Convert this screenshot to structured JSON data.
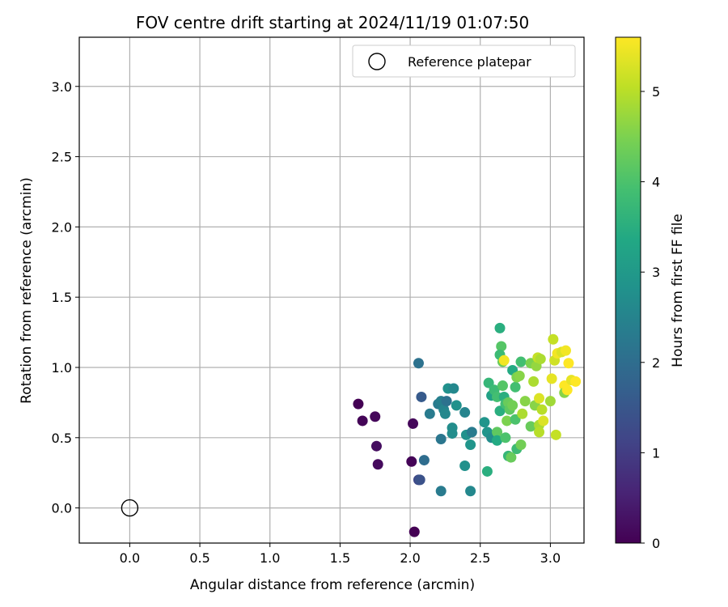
{
  "chart_data": {
    "type": "scatter",
    "title": "FOV centre drift starting at 2024/11/19 01:07:50",
    "xlabel": "Angular distance from reference (arcmin)",
    "ylabel": "Rotation from reference (arcmin)",
    "xlim": [
      -0.36,
      3.24
    ],
    "ylim": [
      -0.25,
      3.35
    ],
    "xticks": [
      0.0,
      0.5,
      1.0,
      1.5,
      2.0,
      2.5,
      3.0
    ],
    "xtick_labels": [
      "0.0",
      "0.5",
      "1.0",
      "1.5",
      "2.0",
      "2.5",
      "3.0"
    ],
    "yticks": [
      0.0,
      0.5,
      1.0,
      1.5,
      2.0,
      2.5,
      3.0
    ],
    "ytick_labels": [
      "0.0",
      "0.5",
      "1.0",
      "1.5",
      "2.0",
      "2.5",
      "3.0"
    ],
    "grid": true,
    "legend": {
      "position": "top-right",
      "entries": [
        "Reference platepar"
      ]
    },
    "reference_point": {
      "x": 0.0,
      "y": 0.0,
      "label": "Reference platepar"
    },
    "colorbar": {
      "label": "Hours from first FF file",
      "range": [
        0,
        5.6
      ],
      "ticks": [
        0,
        1,
        2,
        3,
        4,
        5
      ],
      "tick_labels": [
        "0",
        "1",
        "2",
        "3",
        "4",
        "5"
      ],
      "colormap": "viridis"
    },
    "points": [
      [
        1.63,
        0.74,
        0.0
      ],
      [
        1.66,
        0.62,
        0.05
      ],
      [
        1.75,
        0.65,
        0.1
      ],
      [
        1.76,
        0.44,
        0.2
      ],
      [
        1.77,
        0.31,
        0.15
      ],
      [
        2.02,
        0.6,
        0.1
      ],
      [
        2.01,
        0.33,
        0.05
      ],
      [
        2.03,
        -0.17,
        0.0
      ],
      [
        2.06,
        0.2,
        1.2
      ],
      [
        2.07,
        0.2,
        1.4
      ],
      [
        2.06,
        1.03,
        2.1
      ],
      [
        2.08,
        0.79,
        1.6
      ],
      [
        2.1,
        0.34,
        2.0
      ],
      [
        2.14,
        0.67,
        2.3
      ],
      [
        2.2,
        0.74,
        2.3
      ],
      [
        2.22,
        0.76,
        2.4
      ],
      [
        2.24,
        0.7,
        2.5
      ],
      [
        2.26,
        0.76,
        2.1
      ],
      [
        2.25,
        0.67,
        2.6
      ],
      [
        2.22,
        0.49,
        2.2
      ],
      [
        2.27,
        0.85,
        2.8
      ],
      [
        2.31,
        0.85,
        2.6
      ],
      [
        2.3,
        0.57,
        2.7
      ],
      [
        2.3,
        0.53,
        2.7
      ],
      [
        2.33,
        0.73,
        2.8
      ],
      [
        2.22,
        0.12,
        2.3
      ],
      [
        2.39,
        0.68,
        2.5
      ],
      [
        2.39,
        0.3,
        2.8
      ],
      [
        2.4,
        0.52,
        2.8
      ],
      [
        2.43,
        0.45,
        2.9
      ],
      [
        2.43,
        0.12,
        2.6
      ],
      [
        2.44,
        0.54,
        2.3
      ],
      [
        2.53,
        0.61,
        2.9
      ],
      [
        2.55,
        0.54,
        2.9
      ],
      [
        2.58,
        0.5,
        2.7
      ],
      [
        2.55,
        0.26,
        3.5
      ],
      [
        2.56,
        0.89,
        3.7
      ],
      [
        2.58,
        0.8,
        3.2
      ],
      [
        2.6,
        0.84,
        3.8
      ],
      [
        2.62,
        0.79,
        3.9
      ],
      [
        2.62,
        0.54,
        4.2
      ],
      [
        2.62,
        0.48,
        3.4
      ],
      [
        2.64,
        0.69,
        3.5
      ],
      [
        2.64,
        1.28,
        3.5
      ],
      [
        2.65,
        1.15,
        4.1
      ],
      [
        2.64,
        1.09,
        3.8
      ],
      [
        2.66,
        1.04,
        4.3
      ],
      [
        2.66,
        0.87,
        4.1
      ],
      [
        2.67,
        0.79,
        3.5
      ],
      [
        2.68,
        0.74,
        3.9
      ],
      [
        2.67,
        1.05,
        5.5
      ],
      [
        2.68,
        0.5,
        4.0
      ],
      [
        2.69,
        0.62,
        4.5
      ],
      [
        2.7,
        0.75,
        4.3
      ],
      [
        2.7,
        0.37,
        3.7
      ],
      [
        2.71,
        0.7,
        4.2
      ],
      [
        2.72,
        0.36,
        4.3
      ],
      [
        2.73,
        0.98,
        3.4
      ],
      [
        2.73,
        0.73,
        4.4
      ],
      [
        2.75,
        0.63,
        4.0
      ],
      [
        2.75,
        0.86,
        3.9
      ],
      [
        2.76,
        0.93,
        4.5
      ],
      [
        2.76,
        0.42,
        3.8
      ],
      [
        2.78,
        0.94,
        4.6
      ],
      [
        2.79,
        1.04,
        3.9
      ],
      [
        2.79,
        0.45,
        4.4
      ],
      [
        2.8,
        0.67,
        4.9
      ],
      [
        2.82,
        0.76,
        4.6
      ],
      [
        2.86,
        1.03,
        4.5
      ],
      [
        2.86,
        0.58,
        4.3
      ],
      [
        2.88,
        0.9,
        4.9
      ],
      [
        2.89,
        0.73,
        4.6
      ],
      [
        2.9,
        1.01,
        4.7
      ],
      [
        2.91,
        1.07,
        5.1
      ],
      [
        2.92,
        0.78,
        5.3
      ],
      [
        2.92,
        0.59,
        4.9
      ],
      [
        2.92,
        0.54,
        5.0
      ],
      [
        2.93,
        1.06,
        4.9
      ],
      [
        2.94,
        0.7,
        5.0
      ],
      [
        2.95,
        0.62,
        5.3
      ],
      [
        3.0,
        0.76,
        4.8
      ],
      [
        3.01,
        0.92,
        5.4
      ],
      [
        3.02,
        1.2,
        5.1
      ],
      [
        3.03,
        1.05,
        5.2
      ],
      [
        3.04,
        0.52,
        5.1
      ],
      [
        3.05,
        1.1,
        5.5
      ],
      [
        3.08,
        1.11,
        5.3
      ],
      [
        3.1,
        0.87,
        5.6
      ],
      [
        3.1,
        0.82,
        4.6
      ],
      [
        3.11,
        1.12,
        5.5
      ],
      [
        3.12,
        0.84,
        5.6
      ],
      [
        3.13,
        1.03,
        5.6
      ],
      [
        3.15,
        0.91,
        5.4
      ],
      [
        3.18,
        0.9,
        5.6
      ]
    ]
  }
}
